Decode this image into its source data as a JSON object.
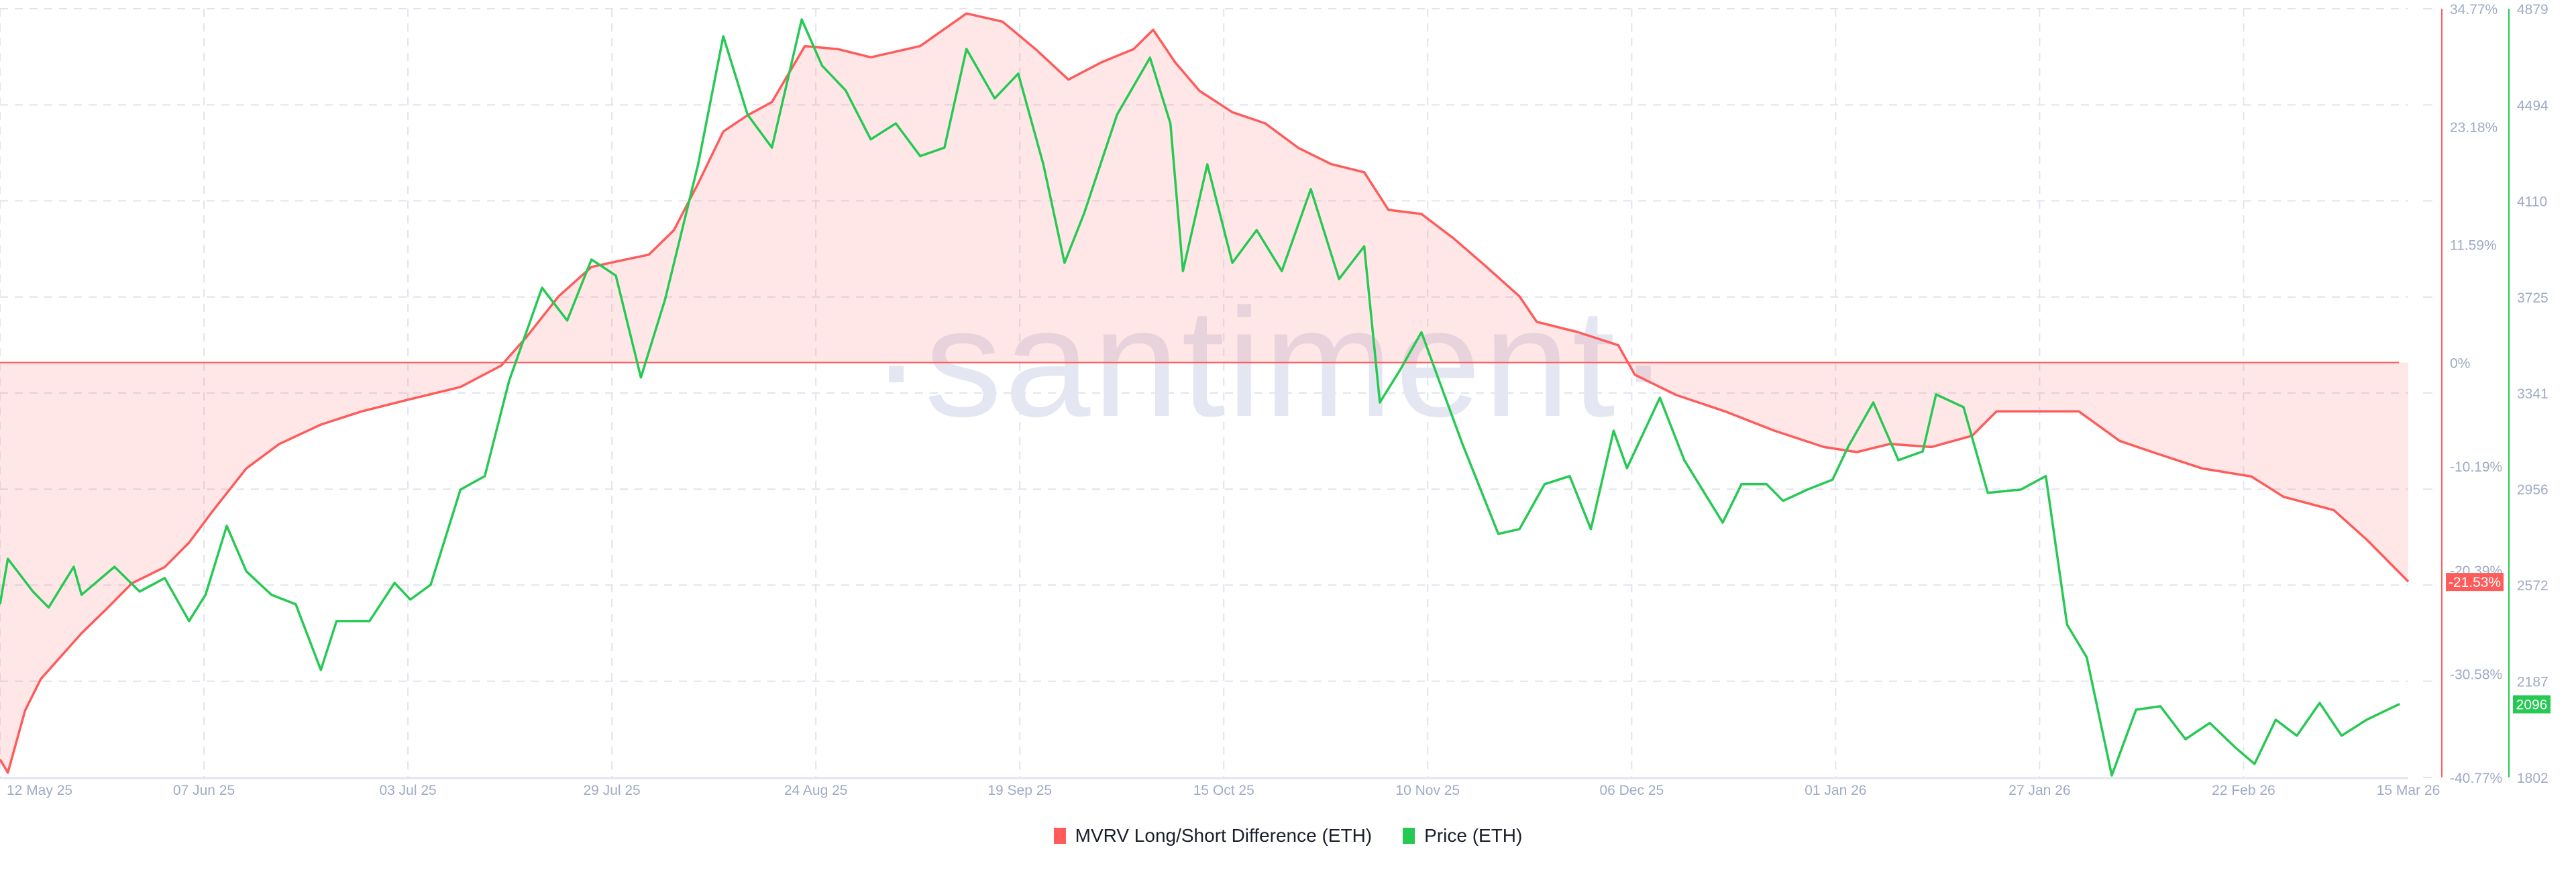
{
  "watermark": "·santiment·",
  "colors": {
    "mvrv": "#ff5b5b",
    "mvrv_fill": "rgba(255, 91, 91, 0.15)",
    "price": "#26c953",
    "grid": "#e1e4ef",
    "axis_text": "#9faac4",
    "watermark": "#e4e7f1",
    "legend_text": "#1b1f2b"
  },
  "legend": [
    {
      "label": "MVRV Long/Short Difference (ETH)",
      "color": "#ff5b5b"
    },
    {
      "label": "Price (ETH)",
      "color": "#26c953"
    }
  ],
  "chart_data": {
    "type": "line",
    "title": "",
    "x_start_date": "12 May 25",
    "x_end_date": "15 Mar 26",
    "x_ticks": [
      "12 May 25",
      "07 Jun 25",
      "03 Jul 25",
      "29 Jul 25",
      "24 Aug 25",
      "19 Sep 25",
      "15 Oct 25",
      "10 Nov 25",
      "06 Dec 25",
      "01 Jan 26",
      "27 Jan 26",
      "22 Feb 26",
      "15 Mar 26"
    ],
    "x_tick_days": [
      0,
      26,
      52,
      78,
      104,
      130,
      156,
      182,
      208,
      234,
      260,
      286,
      307
    ],
    "y_left": {
      "label": "MVRV Long/Short Difference (ETH)",
      "ticks": [
        "34.77%",
        "23.18%",
        "11.59%",
        "0%",
        "-10.19%",
        "-20.39%",
        "-30.58%",
        "-40.77%"
      ],
      "tick_values": [
        34.77,
        23.18,
        11.59,
        0,
        -10.19,
        -20.39,
        -30.58,
        -40.77
      ],
      "range": [
        -40.77,
        34.77
      ],
      "current_value_label": "-21.53%"
    },
    "y_right": {
      "label": "Price (ETH)",
      "ticks": [
        "4879",
        "4494",
        "4110",
        "3725",
        "3341",
        "2956",
        "2572",
        "2187",
        "1802"
      ],
      "tick_values": [
        4879,
        4494,
        4110,
        3725,
        3341,
        2956,
        2572,
        2187,
        1802
      ],
      "range": [
        1802,
        4879
      ],
      "current_value_label": "2096"
    },
    "series": [
      {
        "name": "MVRV Long/Short Difference (ETH)",
        "axis": "left",
        "color": "#ff5b5b",
        "fill_to_zero": true,
        "points": [
          [
            0,
            -39.0
          ],
          [
            1,
            -40.3
          ],
          [
            3.2,
            -34.2
          ],
          [
            5.2,
            -31.1
          ],
          [
            10.4,
            -26.6
          ],
          [
            13.6,
            -24.2
          ],
          [
            16.8,
            -21.7
          ],
          [
            21,
            -20.1
          ],
          [
            24.1,
            -17.7
          ],
          [
            27.2,
            -14.5
          ],
          [
            31.4,
            -10.4
          ],
          [
            35.6,
            -8.0
          ],
          [
            40.9,
            -6.1
          ],
          [
            46.1,
            -4.8
          ],
          [
            52.3,
            -3.6
          ],
          [
            58.7,
            -2.4
          ],
          [
            63.9,
            -0.3
          ],
          [
            67.1,
            2.5
          ],
          [
            71.2,
            6.5
          ],
          [
            75.4,
            9.4
          ],
          [
            79.6,
            10.1
          ],
          [
            82.7,
            10.6
          ],
          [
            85.9,
            13.0
          ],
          [
            89,
            17.6
          ],
          [
            92.2,
            22.7
          ],
          [
            95.3,
            24.3
          ],
          [
            98.4,
            25.6
          ],
          [
            102.6,
            31.1
          ],
          [
            106.8,
            30.8
          ],
          [
            111,
            30.0
          ],
          [
            117.3,
            31.1
          ],
          [
            123.2,
            34.3
          ],
          [
            127.8,
            33.5
          ],
          [
            132,
            30.8
          ],
          [
            136.2,
            27.8
          ],
          [
            140.4,
            29.5
          ],
          [
            144.5,
            30.8
          ],
          [
            147,
            32.7
          ],
          [
            149.8,
            29.5
          ],
          [
            152.9,
            26.7
          ],
          [
            157.1,
            24.6
          ],
          [
            161.3,
            23.5
          ],
          [
            165.5,
            21.1
          ],
          [
            169.7,
            19.5
          ],
          [
            173.9,
            18.7
          ],
          [
            177,
            15.0
          ],
          [
            181.2,
            14.6
          ],
          [
            185.3,
            12.2
          ],
          [
            189.5,
            9.4
          ],
          [
            193.7,
            6.5
          ],
          [
            195.9,
            4.0
          ],
          [
            201.1,
            3.0
          ],
          [
            206.3,
            1.7
          ],
          [
            208.4,
            -1.2
          ],
          [
            213.7,
            -3.2
          ],
          [
            219.9,
            -4.8
          ],
          [
            226.2,
            -6.7
          ],
          [
            232.5,
            -8.3
          ],
          [
            236.7,
            -8.8
          ],
          [
            240.9,
            -8.0
          ],
          [
            246.2,
            -8.3
          ],
          [
            251.4,
            -7.2
          ],
          [
            254.5,
            -4.8
          ],
          [
            259.8,
            -4.8
          ],
          [
            265,
            -4.8
          ],
          [
            270.2,
            -7.7
          ],
          [
            274.4,
            -8.8
          ],
          [
            280.7,
            -10.4
          ],
          [
            287,
            -11.2
          ],
          [
            291.1,
            -13.2
          ],
          [
            297.5,
            -14.5
          ],
          [
            301.7,
            -17.4
          ],
          [
            307,
            -21.53
          ]
        ]
      },
      {
        "name": "Price (ETH)",
        "axis": "right",
        "color": "#26c953",
        "fill_to_zero": false,
        "points": [
          [
            0,
            2495
          ],
          [
            1,
            2677
          ],
          [
            4.2,
            2546
          ],
          [
            6.2,
            2482
          ],
          [
            9.4,
            2645
          ],
          [
            10.4,
            2533
          ],
          [
            14.6,
            2645
          ],
          [
            17.8,
            2546
          ],
          [
            21,
            2600
          ],
          [
            24.1,
            2428
          ],
          [
            26.2,
            2533
          ],
          [
            28.9,
            2809
          ],
          [
            31.4,
            2627
          ],
          [
            34.6,
            2533
          ],
          [
            37.7,
            2495
          ],
          [
            40.9,
            2232
          ],
          [
            42.9,
            2428
          ],
          [
            47.1,
            2428
          ],
          [
            50.3,
            2581
          ],
          [
            52.3,
            2514
          ],
          [
            54.9,
            2573
          ],
          [
            58.7,
            2954
          ],
          [
            61.8,
            3008
          ],
          [
            64.9,
            3389
          ],
          [
            69.1,
            3762
          ],
          [
            72.3,
            3631
          ],
          [
            75.4,
            3875
          ],
          [
            78.5,
            3811
          ],
          [
            81.7,
            3403
          ],
          [
            84.8,
            3717
          ],
          [
            89,
            4256
          ],
          [
            92.2,
            4769
          ],
          [
            95.3,
            4455
          ],
          [
            98.4,
            4323
          ],
          [
            102.2,
            4836
          ],
          [
            104.8,
            4651
          ],
          [
            107.8,
            4552
          ],
          [
            111,
            4356
          ],
          [
            114.2,
            4420
          ],
          [
            117.3,
            4289
          ],
          [
            120.4,
            4323
          ],
          [
            123.2,
            4718
          ],
          [
            126.8,
            4520
          ],
          [
            129.8,
            4619
          ],
          [
            133,
            4256
          ],
          [
            135.7,
            3862
          ],
          [
            138.2,
            4060
          ],
          [
            142.4,
            4455
          ],
          [
            146.6,
            4683
          ],
          [
            149.2,
            4420
          ],
          [
            150.8,
            3829
          ],
          [
            153.9,
            4256
          ],
          [
            157.1,
            3862
          ],
          [
            160.2,
            3993
          ],
          [
            163.4,
            3829
          ],
          [
            167.1,
            4157
          ],
          [
            170.7,
            3797
          ],
          [
            173.9,
            3928
          ],
          [
            175.9,
            3303
          ],
          [
            178.5,
            3434
          ],
          [
            181.2,
            3584
          ],
          [
            183.3,
            3403
          ],
          [
            186.4,
            3139
          ],
          [
            191,
            2777
          ],
          [
            193.7,
            2796
          ],
          [
            196.9,
            2976
          ],
          [
            200.1,
            3008
          ],
          [
            202.8,
            2796
          ],
          [
            205.7,
            3190
          ],
          [
            207.4,
            3040
          ],
          [
            211.6,
            3322
          ],
          [
            214.7,
            3072
          ],
          [
            219.6,
            2822
          ],
          [
            222,
            2976
          ],
          [
            225.2,
            2976
          ],
          [
            227.3,
            2909
          ],
          [
            230.4,
            2954
          ],
          [
            233.6,
            2994
          ],
          [
            235.6,
            3126
          ],
          [
            238.8,
            3303
          ],
          [
            242,
            3072
          ],
          [
            245.1,
            3107
          ],
          [
            246.8,
            3335
          ],
          [
            250.3,
            3284
          ],
          [
            253.4,
            2941
          ],
          [
            257.6,
            2954
          ],
          [
            260.8,
            3008
          ],
          [
            263.5,
            2414
          ],
          [
            266,
            2283
          ],
          [
            269.2,
            1810
          ],
          [
            272.3,
            2073
          ],
          [
            275.4,
            2087
          ],
          [
            278.6,
            1955
          ],
          [
            281.7,
            2020
          ],
          [
            284.9,
            1923
          ],
          [
            287.4,
            1856
          ],
          [
            290.1,
            2033
          ],
          [
            292.8,
            1969
          ],
          [
            295.7,
            2100
          ],
          [
            298.5,
            1969
          ],
          [
            301.7,
            2033
          ],
          [
            305.9,
            2096
          ]
        ]
      }
    ],
    "grid": true,
    "legend_position": "bottom"
  }
}
